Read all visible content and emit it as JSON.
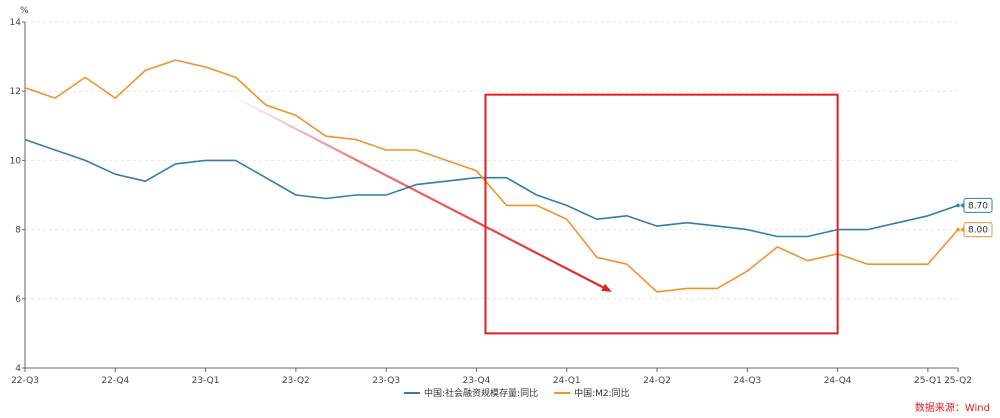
{
  "chart_data": {
    "type": "line",
    "unit": "%",
    "source": "数据来源：Wind",
    "ylim": [
      4,
      14
    ],
    "yticks": [
      4,
      6,
      8,
      10,
      12,
      14
    ],
    "grid": true,
    "legend_position": "bottom",
    "x_ticks": [
      "22-Q3",
      "22-Q4",
      "23-Q1",
      "23-Q2",
      "23-Q3",
      "23-Q4",
      "24-Q1",
      "24-Q2",
      "24-Q3",
      "24-Q4",
      "25-Q1",
      "25-Q2"
    ],
    "x_tick_index": [
      0,
      3,
      6,
      9,
      12,
      15,
      18,
      21,
      24,
      27,
      30,
      31
    ],
    "series": [
      {
        "name": "中国:社会融资规模存量:同比",
        "color": "#2f7fa8",
        "end_label": "8.70",
        "values": [
          10.6,
          10.3,
          10.0,
          9.6,
          9.4,
          9.9,
          10.0,
          10.0,
          9.5,
          9.0,
          8.9,
          9.0,
          9.0,
          9.3,
          9.4,
          9.5,
          9.5,
          9.0,
          8.7,
          8.3,
          8.4,
          8.1,
          8.2,
          8.1,
          8.0,
          7.8,
          7.8,
          8.0,
          8.0,
          8.2,
          8.4,
          8.7
        ]
      },
      {
        "name": "中国:M2:同比",
        "color": "#f0932b",
        "end_label": "8.00",
        "values": [
          12.1,
          11.8,
          12.4,
          11.8,
          12.6,
          12.9,
          12.7,
          12.4,
          11.6,
          11.3,
          10.7,
          10.6,
          10.3,
          10.3,
          10.0,
          9.7,
          8.7,
          8.7,
          8.3,
          7.2,
          7.0,
          6.2,
          6.3,
          6.3,
          6.8,
          7.5,
          7.1,
          7.3,
          7.0,
          7.0,
          7.0,
          8.0
        ]
      }
    ],
    "annotations": {
      "highlight_box": {
        "x_from": 15.3,
        "x_to": 27.0,
        "y_from": 5.0,
        "y_to": 11.9,
        "color": "#e02020"
      },
      "arrow": {
        "from": [
          6.8,
          11.9
        ],
        "to": [
          19.5,
          6.2
        ],
        "color": "#e02020"
      }
    }
  }
}
